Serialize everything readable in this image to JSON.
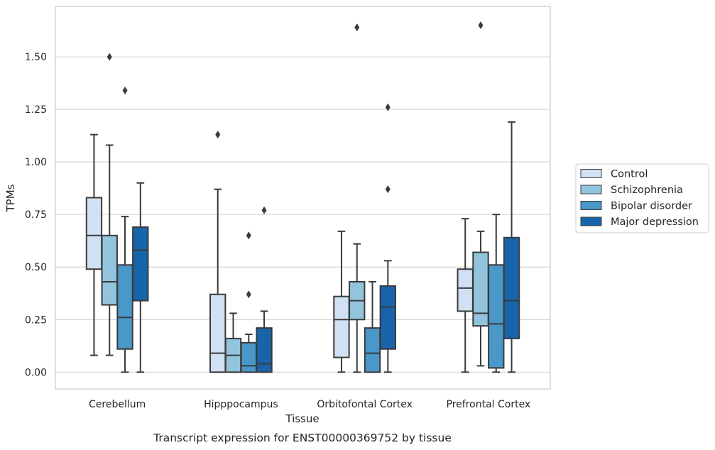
{
  "chart_data": {
    "type": "box",
    "title": "",
    "caption": "Transcript expression for ENST00000369752 by tissue",
    "xlabel": "Tissue",
    "ylabel": "TPMs",
    "ylim": [
      -0.08,
      1.74
    ],
    "yticks": [
      "0.00",
      "0.25",
      "0.50",
      "0.75",
      "1.00",
      "1.25",
      "1.50"
    ],
    "grid": "horizontal",
    "legend_position": "right",
    "categories": [
      "Cerebellum",
      "Hipppocampus",
      "Orbitofontal Cortex",
      "Prefrontal Cortex"
    ],
    "series": [
      {
        "name": "Control",
        "color": "#cfe1f2",
        "boxes": [
          {
            "whisker_low": 0.08,
            "q1": 0.49,
            "median": 0.65,
            "q3": 0.83,
            "whisker_high": 1.13,
            "outliers": []
          },
          {
            "whisker_low": 0.0,
            "q1": 0.0,
            "median": 0.09,
            "q3": 0.37,
            "whisker_high": 0.87,
            "outliers": [
              1.13
            ]
          },
          {
            "whisker_low": 0.0,
            "q1": 0.07,
            "median": 0.25,
            "q3": 0.36,
            "whisker_high": 0.67,
            "outliers": []
          },
          {
            "whisker_low": 0.0,
            "q1": 0.29,
            "median": 0.4,
            "q3": 0.49,
            "whisker_high": 0.73,
            "outliers": []
          }
        ]
      },
      {
        "name": "Schizophrenia",
        "color": "#93c4de",
        "boxes": [
          {
            "whisker_low": 0.08,
            "q1": 0.32,
            "median": 0.43,
            "q3": 0.65,
            "whisker_high": 1.08,
            "outliers": [
              1.5
            ]
          },
          {
            "whisker_low": 0.0,
            "q1": 0.0,
            "median": 0.08,
            "q3": 0.16,
            "whisker_high": 0.28,
            "outliers": []
          },
          {
            "whisker_low": 0.0,
            "q1": 0.25,
            "median": 0.34,
            "q3": 0.43,
            "whisker_high": 0.61,
            "outliers": [
              1.64
            ]
          },
          {
            "whisker_low": 0.03,
            "q1": 0.22,
            "median": 0.28,
            "q3": 0.57,
            "whisker_high": 0.67,
            "outliers": [
              1.65
            ]
          }
        ]
      },
      {
        "name": "Bipolar disorder",
        "color": "#4a98c9",
        "boxes": [
          {
            "whisker_low": 0.0,
            "q1": 0.11,
            "median": 0.26,
            "q3": 0.51,
            "whisker_high": 0.74,
            "outliers": [
              1.34
            ]
          },
          {
            "whisker_low": 0.0,
            "q1": 0.0,
            "median": 0.03,
            "q3": 0.14,
            "whisker_high": 0.18,
            "outliers": [
              0.37,
              0.65
            ]
          },
          {
            "whisker_low": 0.0,
            "q1": 0.0,
            "median": 0.09,
            "q3": 0.21,
            "whisker_high": 0.43,
            "outliers": []
          },
          {
            "whisker_low": 0.0,
            "q1": 0.02,
            "median": 0.23,
            "q3": 0.51,
            "whisker_high": 0.75,
            "outliers": []
          }
        ]
      },
      {
        "name": "Major depression",
        "color": "#1764ab",
        "boxes": [
          {
            "whisker_low": 0.0,
            "q1": 0.34,
            "median": 0.58,
            "q3": 0.69,
            "whisker_high": 0.9,
            "outliers": []
          },
          {
            "whisker_low": 0.0,
            "q1": 0.0,
            "median": 0.04,
            "q3": 0.21,
            "whisker_high": 0.29,
            "outliers": [
              0.77
            ]
          },
          {
            "whisker_low": 0.0,
            "q1": 0.11,
            "median": 0.31,
            "q3": 0.41,
            "whisker_high": 0.53,
            "outliers": [
              0.87,
              1.26
            ]
          },
          {
            "whisker_low": 0.0,
            "q1": 0.16,
            "median": 0.34,
            "q3": 0.64,
            "whisker_high": 1.19,
            "outliers": []
          }
        ]
      }
    ]
  }
}
